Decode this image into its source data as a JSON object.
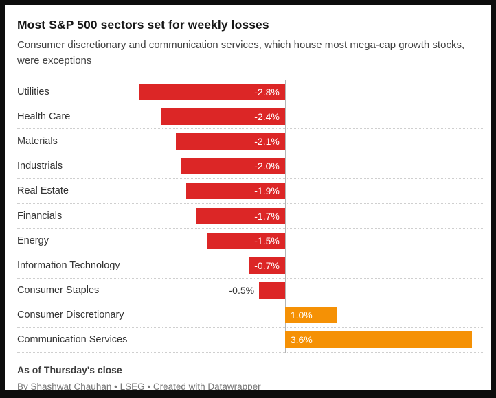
{
  "header": {
    "title": "Most S&P 500 sectors set for weekly losses",
    "subtitle": "Consumer discretionary and communication services, which house most mega-cap growth stocks, were exceptions"
  },
  "chart_data": {
    "type": "bar",
    "orientation": "horizontal",
    "title": "Most S&P 500 sectors set for weekly losses",
    "subtitle": "Consumer discretionary and communication services, which house most mega-cap growth stocks, were exceptions",
    "categories": [
      "Utilities",
      "Health Care",
      "Materials",
      "Industrials",
      "Real Estate",
      "Financials",
      "Energy",
      "Information Technology",
      "Consumer Staples",
      "Consumer Discretionary",
      "Communication Services"
    ],
    "values": [
      -2.8,
      -2.4,
      -2.1,
      -2.0,
      -1.9,
      -1.7,
      -1.5,
      -0.7,
      -0.5,
      1.0,
      3.6
    ],
    "value_labels": [
      "-2.8%",
      "-2.4%",
      "-2.1%",
      "-2.0%",
      "-1.9%",
      "-1.7%",
      "-1.5%",
      "-0.7%",
      "-0.5%",
      "1.0%",
      "3.6%"
    ],
    "unit": "percent",
    "xlim": [
      -3.6,
      3.8
    ],
    "grid": "dotted-row-separators",
    "legend": "none",
    "colors": {
      "negative": "#dc2626",
      "positive": "#f59105"
    },
    "layout": {
      "zero_pct": 57.5,
      "pct_per_unit": 11.14,
      "outside_label_threshold": 0.6
    }
  },
  "footer": {
    "note": "As of Thursday's close",
    "byline": "By Shashwat Chauhan • LSEG • Created with Datawrapper"
  }
}
